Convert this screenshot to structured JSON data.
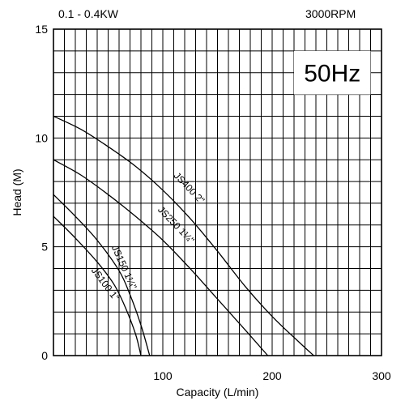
{
  "header": {
    "power": "0.1 - 0.4KW",
    "speed": "3000RPM",
    "frequency": "50Hz"
  },
  "chart_data": {
    "type": "line",
    "title": "",
    "xlabel": "Capacity (L/min)",
    "ylabel": "Head  (M)",
    "xlim": [
      0,
      300
    ],
    "ylim": [
      0,
      15
    ],
    "x_ticks": [
      100,
      200,
      300
    ],
    "y_ticks": [
      0,
      5,
      10,
      15
    ],
    "grid": true,
    "curve_color": "#000000",
    "series": [
      {
        "name": "JS400 2\"",
        "points": [
          [
            0,
            11.0
          ],
          [
            25,
            10.4
          ],
          [
            50,
            9.6
          ],
          [
            75,
            8.7
          ],
          [
            100,
            7.6
          ],
          [
            125,
            6.3
          ],
          [
            150,
            4.8
          ],
          [
            175,
            3.2
          ],
          [
            200,
            1.8
          ],
          [
            225,
            0.6
          ],
          [
            238,
            0
          ]
        ]
      },
      {
        "name": "JS250 1¼\"",
        "points": [
          [
            0,
            9.0
          ],
          [
            25,
            8.3
          ],
          [
            50,
            7.4
          ],
          [
            75,
            6.4
          ],
          [
            100,
            5.3
          ],
          [
            125,
            4.0
          ],
          [
            150,
            2.6
          ],
          [
            175,
            1.2
          ],
          [
            196,
            0
          ]
        ]
      },
      {
        "name": "JS150 1¼\"",
        "points": [
          [
            0,
            7.4
          ],
          [
            20,
            6.4
          ],
          [
            40,
            5.3
          ],
          [
            60,
            3.9
          ],
          [
            70,
            2.8
          ],
          [
            80,
            1.4
          ],
          [
            88,
            0
          ]
        ]
      },
      {
        "name": "JS100 1\"",
        "points": [
          [
            0,
            6.4
          ],
          [
            20,
            5.4
          ],
          [
            40,
            4.3
          ],
          [
            55,
            3.3
          ],
          [
            65,
            2.3
          ],
          [
            75,
            1.0
          ],
          [
            80,
            0
          ]
        ]
      }
    ]
  }
}
